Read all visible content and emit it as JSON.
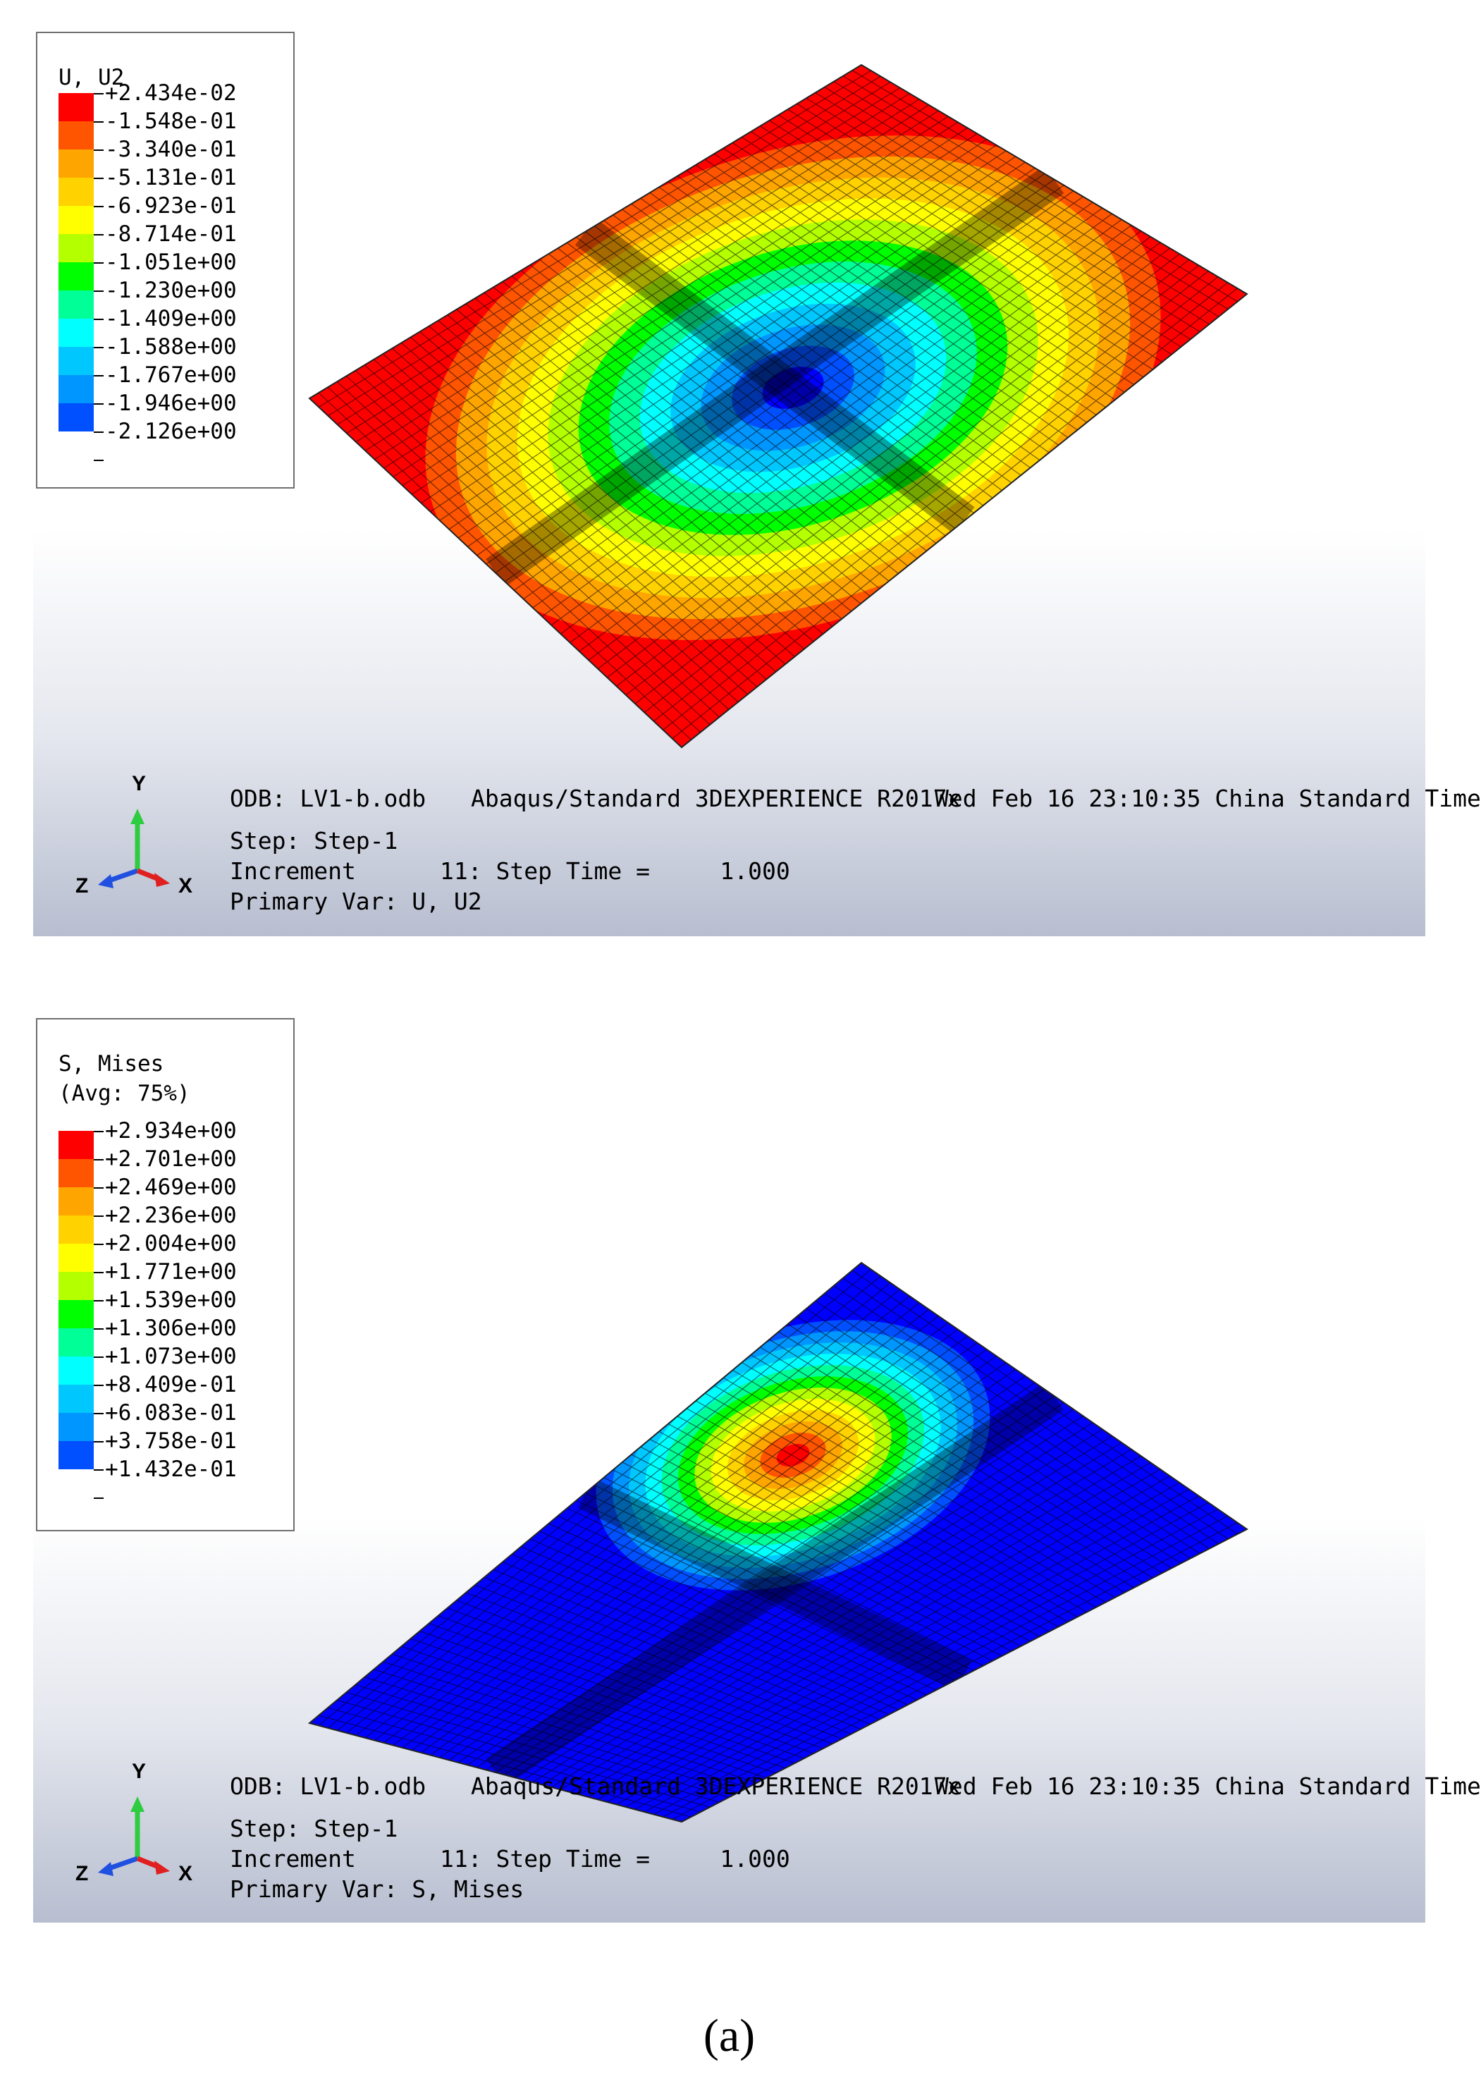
{
  "panels": [
    {
      "legend": {
        "title_lines": [
          "U, U2"
        ],
        "labels": [
          "+2.434e-02",
          "-1.548e-01",
          "-3.340e-01",
          "-5.131e-01",
          "-6.923e-01",
          "-8.714e-01",
          "-1.051e+00",
          "-1.230e+00",
          "-1.409e+00",
          "-1.588e+00",
          "-1.767e+00",
          "-1.946e+00",
          "-2.126e+00"
        ]
      },
      "info": {
        "odb": "ODB: LV1-b.odb",
        "solver": "Abaqus/Standard 3DEXPERIENCE R2017x",
        "date": "Wed Feb 16 23:10:35 China Standard Time",
        "step": "Step: Step-1",
        "increment": "Increment      11: Step Time =     1.000",
        "primary_var": "Primary Var: U, U2"
      },
      "triad": {
        "y": "Y",
        "z": "Z",
        "x": "X"
      },
      "contour": {
        "field": "U2",
        "peak_level": 12,
        "background_level": 0
      }
    },
    {
      "legend": {
        "title_lines": [
          "S, Mises",
          "(Avg: 75%)"
        ],
        "labels": [
          "+2.934e+00",
          "+2.701e+00",
          "+2.469e+00",
          "+2.236e+00",
          "+2.004e+00",
          "+1.771e+00",
          "+1.539e+00",
          "+1.306e+00",
          "+1.073e+00",
          "+8.409e-01",
          "+6.083e-01",
          "+3.758e-01",
          "+1.432e-01"
        ]
      },
      "info": {
        "odb": "ODB: LV1-b.odb",
        "solver": "Abaqus/Standard 3DEXPERIENCE R2017x",
        "date": "Wed Feb 16 23:10:35 China Standard Time",
        "step": "Step: Step-1",
        "increment": "Increment      11: Step Time =     1.000",
        "primary_var": "Primary Var: S, Mises"
      },
      "triad": {
        "y": "Y",
        "z": "Z",
        "x": "X"
      },
      "contour": {
        "field": "Mises",
        "peak_level": 0,
        "background_level": 12
      }
    }
  ],
  "colors": {
    "scale": [
      "#ff0000",
      "#ff5400",
      "#ffa500",
      "#ffd200",
      "#ffff00",
      "#b4ff00",
      "#00ff00",
      "#00ff96",
      "#00ffff",
      "#00c8ff",
      "#0096ff",
      "#0050ff",
      "#0000ff"
    ],
    "axis_y": "#2ecc40",
    "axis_x": "#e02020",
    "axis_z": "#2050e0"
  },
  "caption": "(a)"
}
